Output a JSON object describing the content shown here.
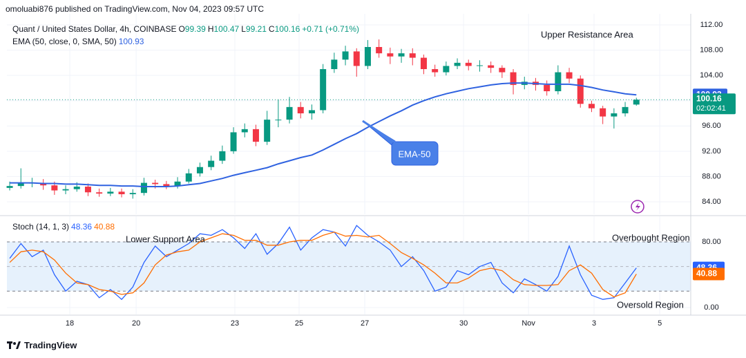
{
  "header": {
    "text": "omoluabi876 published on TradingView.com, Nov 04, 2023 09:57 UTC"
  },
  "footer": {
    "brand": "TradingView"
  },
  "chart_data": [
    {
      "type": "candlestick",
      "title": "Quant / United States Dollar, 4h, COINBASE",
      "ohlc_labels": [
        "O",
        "H",
        "L",
        "C"
      ],
      "change": "+0.71 (+0.71%)",
      "open": [
        86.2,
        86.5,
        87,
        87,
        86.6,
        85.8,
        86,
        86.4,
        85.5,
        85.3,
        85.6,
        85.2,
        85.4,
        87,
        86.8,
        86.5,
        87.2,
        88.5,
        89.5,
        90.5,
        92,
        95,
        95.5,
        93.5,
        97,
        97,
        99,
        98,
        98.5,
        105,
        106.5,
        107.8,
        105.5,
        108.5,
        107.5,
        107,
        107.5,
        106.8,
        105,
        104.5,
        105.5,
        106,
        105.5,
        105.6,
        105.2,
        104.5,
        102.5,
        103,
        102.5,
        101.5,
        104.5,
        103.5,
        99.5,
        98.8,
        97.5,
        98,
        99.39
      ],
      "high": [
        87.2,
        89.3,
        87.8,
        87.6,
        87.2,
        86.6,
        87.1,
        86.9,
        86.1,
        86.2,
        86.1,
        86,
        87.8,
        87.5,
        87.3,
        87.9,
        89.2,
        90.2,
        91.3,
        92.9,
        95.8,
        96.4,
        96.2,
        98.4,
        100.2,
        100.6,
        99.8,
        99.4,
        105.8,
        107.6,
        108.7,
        108.3,
        109.6,
        109.7,
        108.4,
        108.2,
        108.3,
        107.3,
        105.7,
        106.2,
        106.7,
        106.5,
        106.4,
        106.2,
        105.6,
        105,
        103.8,
        103.6,
        103.2,
        105.6,
        105.2,
        104,
        100,
        99.2,
        98.8,
        99.8,
        100.47
      ],
      "low": [
        85.8,
        86.1,
        86.3,
        85.9,
        85.1,
        85.2,
        85.6,
        84.9,
        84.8,
        84.9,
        84.7,
        84.5,
        85,
        86.1,
        86,
        86.1,
        86.9,
        88,
        89,
        90,
        91.6,
        94.2,
        92.8,
        93,
        95.8,
        96.4,
        97.2,
        97,
        98,
        104.4,
        105.6,
        103.8,
        105,
        106.8,
        105.8,
        106,
        105.6,
        104.2,
        103.8,
        104,
        105,
        104.8,
        104.6,
        104.4,
        103.6,
        101,
        101.8,
        101.6,
        100.8,
        101,
        102.8,
        98.9,
        98.2,
        96.3,
        95.6,
        97.5,
        99.21
      ],
      "close": [
        86.5,
        87,
        87,
        86.6,
        85.8,
        86,
        86.4,
        85.5,
        85.3,
        85.6,
        85.2,
        85.4,
        87,
        86.8,
        86.5,
        87.2,
        88.5,
        89.5,
        90.5,
        92,
        95,
        95.5,
        93.5,
        97,
        97,
        99,
        98,
        98.5,
        105,
        106.5,
        107.8,
        105.5,
        108.5,
        107.5,
        107,
        107.5,
        106.8,
        105,
        104.5,
        105.5,
        106,
        105.5,
        105.6,
        105.2,
        104.5,
        102.5,
        103,
        102.5,
        101.5,
        104.5,
        103.5,
        99.5,
        98.8,
        97.5,
        98,
        99,
        100.16
      ],
      "up_color": "#089981",
      "down_color": "#f23645",
      "series": [
        {
          "name": "EMA (50, close, 0, SMA, 50)",
          "color": "#2f62e0",
          "values": [
            87,
            87,
            87,
            86.9,
            86.9,
            86.8,
            86.8,
            86.7,
            86.6,
            86.6,
            86.5,
            86.5,
            86.4,
            86.4,
            86.4,
            86.5,
            86.7,
            86.9,
            87.3,
            87.7,
            88.2,
            88.6,
            89,
            89.4,
            90,
            90.5,
            91,
            91.4,
            92.2,
            93.1,
            94,
            94.8,
            95.8,
            96.7,
            97.6,
            98.4,
            99.3,
            100,
            100.6,
            101.1,
            101.5,
            101.9,
            102.2,
            102.5,
            102.7,
            102.8,
            102.8,
            102.7,
            102.6,
            102.6,
            102.6,
            102.4,
            102.1,
            101.7,
            101.4,
            101.1,
            100.93
          ]
        }
      ],
      "countdown": "02:02:41",
      "xlim": [
        -0.25,
        60.86
      ],
      "xticks": [
        {
          "value": 5.37,
          "label": "18"
        },
        {
          "value": 11.3,
          "label": "20"
        },
        {
          "value": 20.12,
          "label": "23"
        },
        {
          "value": 25.86,
          "label": "25"
        },
        {
          "value": 31.73,
          "label": "27"
        },
        {
          "value": 40.56,
          "label": "30"
        },
        {
          "value": 46.36,
          "label": "Nov"
        },
        {
          "value": 52.22,
          "label": "3"
        },
        {
          "value": 58.09,
          "label": "5"
        }
      ],
      "ylim": [
        82.03,
        113.75
      ],
      "yticks": [
        {
          "value": 112,
          "label": "112.00"
        },
        {
          "value": 108,
          "label": "108.00"
        },
        {
          "value": 104,
          "label": "104.00"
        },
        {
          "value": 100,
          "label": "100.00"
        },
        {
          "value": 96,
          "label": "96.00"
        },
        {
          "value": 92,
          "label": "92.00"
        },
        {
          "value": 88,
          "label": "88.00"
        },
        {
          "value": 84,
          "label": "84.00"
        }
      ],
      "grid": true,
      "annotations": [
        "Upper Resistance Area",
        "EMA-50"
      ]
    },
    {
      "type": "line",
      "title": "Stoch (14, 1, 3)",
      "series": [
        {
          "color": "#2962ff",
          "values": [
            60,
            78,
            62,
            70,
            40,
            20,
            32,
            28,
            12,
            22,
            10,
            25,
            55,
            75,
            62,
            70,
            78,
            90,
            88,
            95,
            85,
            72,
            90,
            65,
            78,
            98,
            70,
            85,
            95,
            92,
            75,
            100,
            88,
            80,
            70,
            50,
            62,
            45,
            20,
            25,
            45,
            40,
            50,
            55,
            30,
            18,
            35,
            28,
            20,
            38,
            75,
            40,
            15,
            10,
            12,
            30,
            48.36
          ]
        },
        {
          "color": "#ff6d00",
          "values": [
            55,
            68,
            70,
            68,
            58,
            42,
            30,
            28,
            22,
            20,
            16,
            18,
            30,
            52,
            64,
            68,
            70,
            80,
            85,
            90,
            88,
            82,
            82,
            76,
            76,
            80,
            82,
            82,
            88,
            92,
            87,
            88,
            86,
            88,
            78,
            67,
            60,
            52,
            42,
            30,
            30,
            36,
            45,
            48,
            45,
            34,
            28,
            27,
            27,
            28,
            45,
            52,
            42,
            22,
            13,
            18,
            40.88
          ]
        }
      ],
      "ylim": [
        -8.4,
        111.2
      ],
      "yticks": [
        {
          "value": 80,
          "label": "80.00"
        },
        {
          "value": 0,
          "label": "0.00"
        }
      ],
      "bands": [
        20,
        80
      ],
      "midline": 50,
      "band_color": "#e6f1fc",
      "annotations": [
        "Lower Support Area",
        "Overbought Region",
        "Oversold Region"
      ]
    }
  ]
}
